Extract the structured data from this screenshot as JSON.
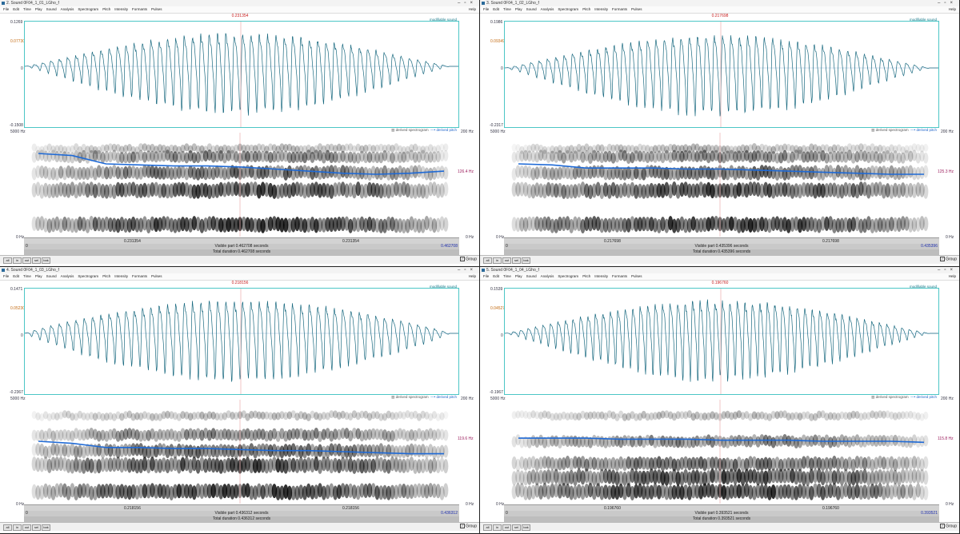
{
  "menu": [
    "File",
    "Edit",
    "Time",
    "Play",
    "Sound",
    "Analysis",
    "Spectrogram",
    "Pitch",
    "Intensity",
    "Formants",
    "Pulses"
  ],
  "help": "Help",
  "legend": {
    "wave": "modifiable sound",
    "spec": "derived spectrogram",
    "pitch": "derived pitch"
  },
  "freq_top": "5000 Hz",
  "freq_bottom": "0 Hz",
  "pitch_top": "200 Hz",
  "pitch_bottom": "0 Hz",
  "zero_label": "0",
  "group_label": "Group",
  "buttons": [
    "all",
    "in",
    "out",
    "sel",
    "bak"
  ],
  "windows": [
    {
      "title": "2. Sound 0F04_1_01_LGho_f",
      "cursor_time": "0.231354",
      "amp_max": "0.1269",
      "amp_cursor": "0.07730",
      "amp_min": "-0.1508",
      "pitch_value": "126.4 Hz",
      "ruler_cursor": "0.231354",
      "ruler_cursor2": "0.231354",
      "ruler_end": "0.462708",
      "visible_part": "Visible part 0.462708 seconds",
      "total_duration": "Total duration 0.462708 seconds"
    },
    {
      "title": "3. Sound 0F04_1_02_LGho_f",
      "cursor_time": "0.217698",
      "amp_max": "0.1986",
      "amp_cursor": "0.09349",
      "amp_min": "-0.2317",
      "pitch_value": "125.3 Hz",
      "ruler_cursor": "0.217698",
      "ruler_cursor2": "0.217698",
      "ruler_end": "0.435396",
      "visible_part": "Visible part 0.435396 seconds",
      "total_duration": "Total duration 0.435396 seconds"
    },
    {
      "title": "4. Sound 0F04_1_03_LGho_f",
      "cursor_time": "0.218156",
      "amp_max": "0.1471",
      "amp_cursor": "0.05230",
      "amp_min": "-0.2367",
      "pitch_value": "119.6 Hz",
      "ruler_cursor": "0.218156",
      "ruler_cursor2": "0.218156",
      "ruler_end": "0.436312",
      "visible_part": "Visible part 0.436312 seconds",
      "total_duration": "Total duration 0.436312 seconds"
    },
    {
      "title": "5. Sound 0F04_1_04_LGho_f",
      "cursor_time": "0.196760",
      "amp_max": "0.1539",
      "amp_cursor": "0.04527",
      "amp_min": "-0.1967",
      "pitch_value": "115.8 Hz",
      "ruler_cursor": "0.196760",
      "ruler_cursor2": "0.196760",
      "ruler_end": "0.393521",
      "visible_part": "Visible part 0.393521 seconds",
      "total_duration": "Total duration 0.393521 seconds"
    }
  ],
  "pitch_contours": [
    [
      0.8,
      0.78,
      0.7,
      0.69,
      0.68,
      0.68,
      0.67,
      0.65,
      0.63,
      0.61,
      0.6,
      0.61,
      0.63
    ],
    [
      0.7,
      0.69,
      0.66,
      0.66,
      0.66,
      0.65,
      0.65,
      0.64,
      0.63,
      0.62,
      0.61,
      0.6,
      0.6
    ],
    [
      0.6,
      0.58,
      0.54,
      0.54,
      0.53,
      0.53,
      0.52,
      0.51,
      0.51,
      0.5,
      0.49,
      0.48,
      0.48
    ],
    [
      0.63,
      0.63,
      0.63,
      0.62,
      0.62,
      0.62,
      0.61,
      0.61,
      0.61,
      0.6,
      0.6,
      0.6,
      0.59
    ]
  ]
}
